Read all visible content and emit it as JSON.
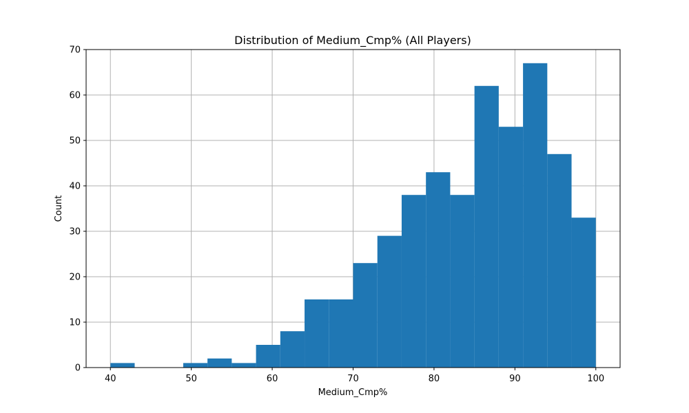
{
  "chart_data": {
    "type": "bar",
    "title": "Distribution of Medium_Cmp% (All Players)",
    "xlabel": "Medium_Cmp%",
    "ylabel": "Count",
    "xlim": [
      37,
      103
    ],
    "ylim": [
      0,
      70
    ],
    "xticks": [
      40,
      50,
      60,
      70,
      80,
      90,
      100
    ],
    "yticks": [
      0,
      10,
      20,
      30,
      40,
      50,
      60,
      70
    ],
    "bin_edges": [
      40,
      43,
      46,
      49,
      52,
      55,
      58,
      61,
      64,
      67,
      70,
      73,
      76,
      79,
      82,
      85,
      88,
      91,
      94,
      97,
      100
    ],
    "counts": [
      1,
      0,
      0,
      1,
      2,
      1,
      5,
      8,
      15,
      15,
      23,
      29,
      38,
      43,
      38,
      62,
      53,
      67,
      47,
      33
    ],
    "bar_color": "#1f77b4",
    "grid": true
  }
}
